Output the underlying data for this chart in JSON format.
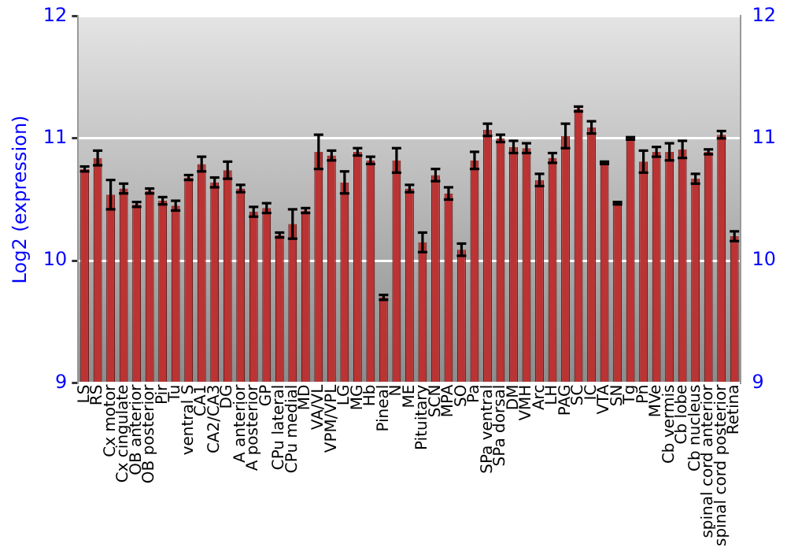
{
  "chart_data": {
    "type": "bar",
    "ylabel": "Log2 (expression)",
    "categories": [
      "LS",
      "RS",
      "Cx motor",
      "Cx cingulate",
      "OB anterior",
      "OB posterior",
      "Pir",
      "Tu",
      "ventral S",
      "CA1",
      "CA2/CA3",
      "DG",
      "A anterior",
      "A posterior",
      "GP",
      "CPu lateral",
      "CPu medial",
      "MD",
      "VA/VL",
      "VPM/VPL",
      "LG",
      "MG",
      "Hb",
      "Pineal",
      "N",
      "ME",
      "Pituitary",
      "SCN",
      "MPA",
      "SO",
      "Pa",
      "SPa ventral",
      "SPa dorsal",
      "DM",
      "VMH",
      "Arc",
      "LH",
      "PAG",
      "SC",
      "IC",
      "VTA",
      "SN",
      "Tg",
      "Pn",
      "MVe",
      "Cb vermis",
      "Cb lobe",
      "Cb nucleus",
      "spinal cord anterior",
      "spinal cord posterior",
      "Retina"
    ],
    "values": [
      10.75,
      10.84,
      10.54,
      10.59,
      10.46,
      10.57,
      10.49,
      10.45,
      10.68,
      10.79,
      10.64,
      10.74,
      10.59,
      10.4,
      10.43,
      10.21,
      10.3,
      10.41,
      10.89,
      10.86,
      10.64,
      10.89,
      10.82,
      9.7,
      10.82,
      10.59,
      10.15,
      10.7,
      10.55,
      10.09,
      10.82,
      11.07,
      11.0,
      10.93,
      10.92,
      10.66,
      10.84,
      11.02,
      11.24,
      11.09,
      10.8,
      10.47,
      11.0,
      10.81,
      10.89,
      10.89,
      10.91,
      10.67,
      10.89,
      11.03,
      10.2
    ],
    "errors": [
      0.02,
      0.06,
      0.12,
      0.04,
      0.02,
      0.02,
      0.03,
      0.04,
      0.02,
      0.06,
      0.04,
      0.07,
      0.03,
      0.04,
      0.04,
      0.02,
      0.12,
      0.02,
      0.14,
      0.04,
      0.09,
      0.03,
      0.03,
      0.02,
      0.1,
      0.03,
      0.08,
      0.05,
      0.05,
      0.05,
      0.07,
      0.05,
      0.03,
      0.05,
      0.04,
      0.05,
      0.04,
      0.1,
      0.02,
      0.05,
      0.01,
      0.01,
      0.01,
      0.09,
      0.04,
      0.07,
      0.07,
      0.04,
      0.02,
      0.03,
      0.04
    ],
    "color": "#bb3333",
    "ylim": [
      9,
      12
    ],
    "yticks": [
      9,
      10,
      11,
      12
    ],
    "y2lim": [
      9,
      12
    ],
    "y2ticks": [
      9,
      10,
      11,
      12
    ],
    "grid": "y",
    "legend": false
  }
}
